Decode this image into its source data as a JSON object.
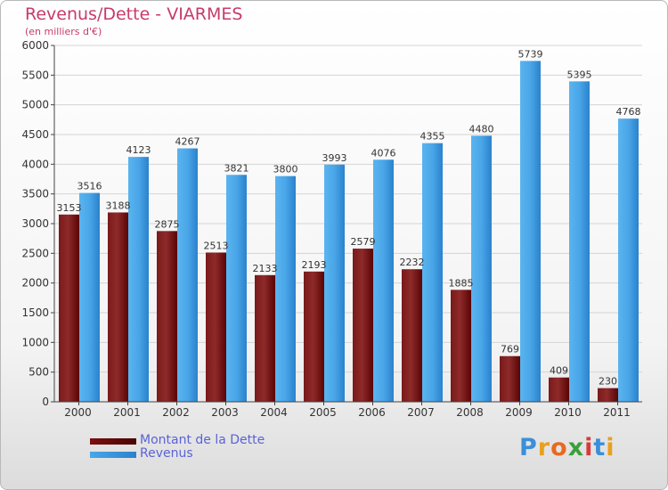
{
  "title": "Revenus/Dette - VIARMES",
  "subtitle": "(en milliers d'€)",
  "colors": {
    "dette": "#8b1a1a",
    "revenus": "#3a98e0",
    "text": "#c83a6a",
    "legend_text": "#5a63d6"
  },
  "logo": {
    "text": "Proxiti",
    "letters": [
      "P",
      "r",
      "o",
      "x",
      "i",
      "t",
      "i"
    ]
  },
  "chart_data": {
    "type": "bar",
    "categories": [
      "2000",
      "2001",
      "2002",
      "2003",
      "2004",
      "2005",
      "2006",
      "2007",
      "2008",
      "2009",
      "2010",
      "2011"
    ],
    "series": [
      {
        "name": "Montant de la Dette",
        "values": [
          3153,
          3188,
          2875,
          2513,
          2133,
          2193,
          2579,
          2232,
          1885,
          769,
          409,
          230
        ]
      },
      {
        "name": "Revenus",
        "values": [
          3516,
          4123,
          4267,
          3821,
          3800,
          3993,
          4076,
          4355,
          4480,
          5739,
          5395,
          4768
        ]
      }
    ],
    "ylim": [
      0,
      6000
    ],
    "yticks": [
      0,
      500,
      1000,
      1500,
      2000,
      2500,
      3000,
      3500,
      4000,
      4500,
      5000,
      5500,
      6000
    ],
    "grid": true,
    "legend_position": "bottom-left"
  }
}
